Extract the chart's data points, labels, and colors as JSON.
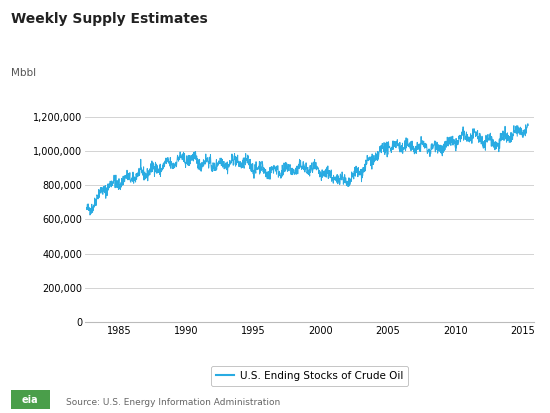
{
  "title": "Weekly Supply Estimates",
  "ylabel": "Mbbl",
  "source": "Source: U.S. Energy Information Administration",
  "legend_label": "U.S. Ending Stocks of Crude Oil",
  "line_color": "#29ABE2",
  "background_color": "#ffffff",
  "grid_color": "#cccccc",
  "ylim": [
    0,
    1400000
  ],
  "yticks": [
    0,
    200000,
    400000,
    600000,
    800000,
    1000000,
    1200000
  ],
  "start_year": 1982.5,
  "end_year": 2015.8,
  "xticks": [
    1985,
    1990,
    1995,
    2000,
    2005,
    2010,
    2015
  ]
}
